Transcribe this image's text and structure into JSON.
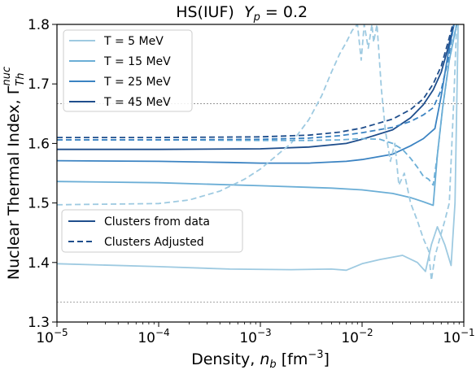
{
  "chart_data": {
    "type": "line",
    "title": "HS(IUF)",
    "title_math": "Y_p = 0.2",
    "xlabel": "Density, n_b [fm^-3]",
    "ylabel": "Nuclear Thermal Index, Γ_Th^nuc",
    "xscale": "log",
    "xlim": [
      1e-05,
      0.1
    ],
    "ylim": [
      1.3,
      1.8
    ],
    "xticks": [
      {
        "value": 1e-05,
        "base": "10",
        "exp": "−5"
      },
      {
        "value": 0.0001,
        "base": "10",
        "exp": "−4"
      },
      {
        "value": 0.001,
        "base": "10",
        "exp": "−3"
      },
      {
        "value": 0.01,
        "base": "10",
        "exp": "−2"
      },
      {
        "value": 0.1,
        "base": "10",
        "exp": "−1"
      }
    ],
    "yticks": [
      "1.3",
      "1.4",
      "1.5",
      "1.6",
      "1.7",
      "1.8"
    ],
    "reference_lines": [
      1.6667,
      1.3333
    ],
    "legend_temperatures": [
      "T = 5 MeV",
      "T = 15 MeV",
      "T = 25 MeV",
      "T = 45 MeV"
    ],
    "legend_styles": [
      "Clusters from data",
      "Clusters Adjusted"
    ],
    "colors": {
      "T5": "#9ecae1",
      "T15": "#6baed6",
      "T25": "#3b83c2",
      "T45": "#1f4e8c",
      "ref": "#888888"
    },
    "series": [
      {
        "name": "T = 5 MeV",
        "style": "solid",
        "color": "T5",
        "points": [
          [
            1e-05,
            1.398
          ],
          [
            0.0001,
            1.393
          ],
          [
            0.0005,
            1.389
          ],
          [
            0.002,
            1.388
          ],
          [
            0.005,
            1.389
          ],
          [
            0.007,
            1.387
          ],
          [
            0.01,
            1.398
          ],
          [
            0.015,
            1.405
          ],
          [
            0.025,
            1.412
          ],
          [
            0.035,
            1.4
          ],
          [
            0.042,
            1.385
          ],
          [
            0.048,
            1.43
          ],
          [
            0.055,
            1.46
          ],
          [
            0.065,
            1.43
          ],
          [
            0.075,
            1.395
          ],
          [
            0.082,
            1.5
          ],
          [
            0.088,
            1.8
          ]
        ]
      },
      {
        "name": "T = 15 MeV",
        "style": "solid",
        "color": "T15",
        "points": [
          [
            1e-05,
            1.536
          ],
          [
            0.0001,
            1.534
          ],
          [
            0.001,
            1.529
          ],
          [
            0.005,
            1.525
          ],
          [
            0.01,
            1.522
          ],
          [
            0.02,
            1.516
          ],
          [
            0.03,
            1.509
          ],
          [
            0.04,
            1.502
          ],
          [
            0.05,
            1.496
          ],
          [
            0.055,
            1.58
          ],
          [
            0.062,
            1.66
          ],
          [
            0.072,
            1.74
          ],
          [
            0.085,
            1.8
          ]
        ]
      },
      {
        "name": "T = 25 MeV",
        "style": "solid",
        "color": "T25",
        "points": [
          [
            1e-05,
            1.571
          ],
          [
            0.0001,
            1.57
          ],
          [
            0.0005,
            1.568
          ],
          [
            0.001,
            1.567
          ],
          [
            0.003,
            1.567
          ],
          [
            0.007,
            1.57
          ],
          [
            0.01,
            1.573
          ],
          [
            0.02,
            1.582
          ],
          [
            0.03,
            1.596
          ],
          [
            0.04,
            1.608
          ],
          [
            0.052,
            1.625
          ],
          [
            0.06,
            1.68
          ],
          [
            0.07,
            1.75
          ],
          [
            0.08,
            1.8
          ]
        ]
      },
      {
        "name": "T = 45 MeV",
        "style": "solid",
        "color": "T45",
        "points": [
          [
            1e-05,
            1.59
          ],
          [
            0.0001,
            1.59
          ],
          [
            0.001,
            1.591
          ],
          [
            0.003,
            1.594
          ],
          [
            0.007,
            1.6
          ],
          [
            0.01,
            1.607
          ],
          [
            0.02,
            1.623
          ],
          [
            0.03,
            1.643
          ],
          [
            0.04,
            1.665
          ],
          [
            0.05,
            1.69
          ],
          [
            0.06,
            1.72
          ],
          [
            0.07,
            1.76
          ],
          [
            0.08,
            1.8
          ]
        ]
      },
      {
        "name": "T = 5 MeV",
        "style": "dashed",
        "color": "T5",
        "points": [
          [
            1e-05,
            1.497
          ],
          [
            0.0001,
            1.499
          ],
          [
            0.0002,
            1.505
          ],
          [
            0.0004,
            1.52
          ],
          [
            0.0007,
            1.54
          ],
          [
            0.001,
            1.557
          ],
          [
            0.002,
            1.6
          ],
          [
            0.003,
            1.64
          ],
          [
            0.004,
            1.68
          ],
          [
            0.005,
            1.72
          ],
          [
            0.006,
            1.75
          ],
          [
            0.007,
            1.77
          ],
          [
            0.008,
            1.79
          ],
          [
            0.009,
            1.8
          ],
          [
            0.0098,
            1.74
          ],
          [
            0.0105,
            1.8
          ],
          [
            0.0115,
            1.76
          ],
          [
            0.0125,
            1.8
          ],
          [
            0.013,
            1.77
          ],
          [
            0.014,
            1.8
          ],
          [
            0.0155,
            1.69
          ],
          [
            0.017,
            1.62
          ],
          [
            0.019,
            1.57
          ],
          [
            0.021,
            1.6
          ],
          [
            0.023,
            1.53
          ],
          [
            0.026,
            1.55
          ],
          [
            0.03,
            1.5
          ],
          [
            0.035,
            1.47
          ],
          [
            0.04,
            1.44
          ],
          [
            0.045,
            1.42
          ],
          [
            0.048,
            1.37
          ],
          [
            0.052,
            1.41
          ],
          [
            0.058,
            1.44
          ],
          [
            0.065,
            1.47
          ],
          [
            0.072,
            1.5
          ],
          [
            0.08,
            1.68
          ],
          [
            0.085,
            1.8
          ]
        ]
      },
      {
        "name": "T = 15 MeV",
        "style": "dashed",
        "color": "T15",
        "points": [
          [
            1e-05,
            1.606
          ],
          [
            0.0001,
            1.606
          ],
          [
            0.001,
            1.605
          ],
          [
            0.003,
            1.605
          ],
          [
            0.006,
            1.606
          ],
          [
            0.01,
            1.608
          ],
          [
            0.015,
            1.607
          ],
          [
            0.02,
            1.6
          ],
          [
            0.025,
            1.59
          ],
          [
            0.03,
            1.575
          ],
          [
            0.035,
            1.56
          ],
          [
            0.04,
            1.545
          ],
          [
            0.045,
            1.54
          ],
          [
            0.05,
            1.53
          ],
          [
            0.055,
            1.58
          ],
          [
            0.062,
            1.66
          ],
          [
            0.072,
            1.74
          ],
          [
            0.085,
            1.8
          ]
        ]
      },
      {
        "name": "T = 25 MeV",
        "style": "dashed",
        "color": "T25",
        "points": [
          [
            1e-05,
            1.606
          ],
          [
            0.0001,
            1.606
          ],
          [
            0.001,
            1.607
          ],
          [
            0.003,
            1.609
          ],
          [
            0.006,
            1.613
          ],
          [
            0.01,
            1.618
          ],
          [
            0.02,
            1.627
          ],
          [
            0.03,
            1.637
          ],
          [
            0.04,
            1.648
          ],
          [
            0.05,
            1.66
          ],
          [
            0.06,
            1.69
          ],
          [
            0.07,
            1.74
          ],
          [
            0.08,
            1.8
          ]
        ]
      },
      {
        "name": "T = 45 MeV",
        "style": "dashed",
        "color": "T45",
        "points": [
          [
            1e-05,
            1.61
          ],
          [
            0.0001,
            1.61
          ],
          [
            0.001,
            1.611
          ],
          [
            0.003,
            1.614
          ],
          [
            0.006,
            1.619
          ],
          [
            0.01,
            1.626
          ],
          [
            0.02,
            1.641
          ],
          [
            0.03,
            1.657
          ],
          [
            0.04,
            1.675
          ],
          [
            0.05,
            1.7
          ],
          [
            0.06,
            1.73
          ],
          [
            0.07,
            1.77
          ],
          [
            0.078,
            1.8
          ]
        ]
      }
    ]
  }
}
